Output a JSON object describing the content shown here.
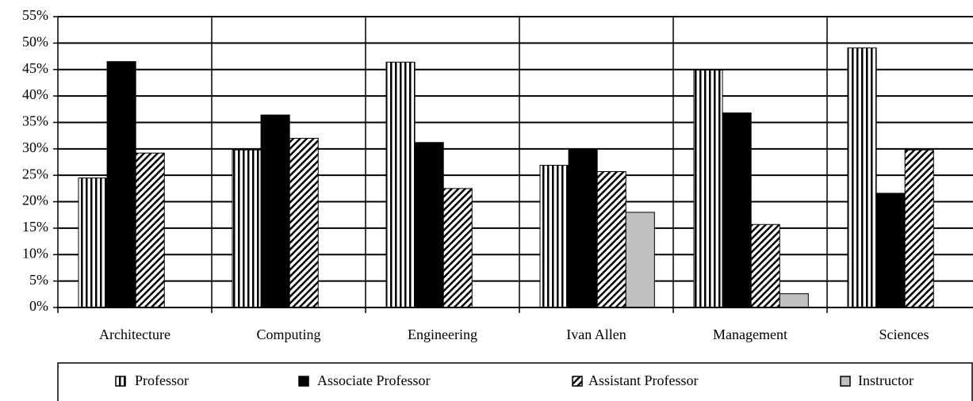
{
  "chart_data": {
    "type": "bar",
    "categories": [
      "Architecture",
      "Computing",
      "Engineering",
      "Ivan Allen",
      "Management",
      "Sciences"
    ],
    "series": [
      {
        "name": "Professor",
        "color": "#000000",
        "pattern": "vertical",
        "values": [
          24.5,
          29.8,
          46.4,
          26.9,
          44.9,
          49.1
        ]
      },
      {
        "name": "Associate Professor",
        "color": "#000000",
        "pattern": "solid",
        "values": [
          46.5,
          36.4,
          31.2,
          30,
          36.8,
          21.6
        ]
      },
      {
        "name": "Assistant Professor",
        "color": "#000000",
        "pattern": "diagonal",
        "values": [
          29.2,
          32,
          22.5,
          25.7,
          15.7,
          29.8
        ]
      },
      {
        "name": "Instructor",
        "color": "#c0c0c0",
        "pattern": "solid",
        "values": [
          null,
          null,
          null,
          18,
          2.6,
          null
        ]
      }
    ],
    "ylim": [
      0,
      55
    ],
    "yticks": [
      {
        "value": 0,
        "label": "0%"
      },
      {
        "value": 5,
        "label": "5%"
      },
      {
        "value": 10,
        "label": "10%"
      },
      {
        "value": 15,
        "label": "15%"
      },
      {
        "value": 20,
        "label": "20%"
      },
      {
        "value": 25,
        "label": "25%"
      },
      {
        "value": 30,
        "label": "30%"
      },
      {
        "value": 35,
        "label": "35%"
      },
      {
        "value": 40,
        "label": "40%"
      },
      {
        "value": 45,
        "label": "45%"
      },
      {
        "value": 50,
        "label": "50%"
      },
      {
        "value": 55,
        "label": "55%"
      }
    ],
    "grid": true,
    "legend": "bottom"
  }
}
